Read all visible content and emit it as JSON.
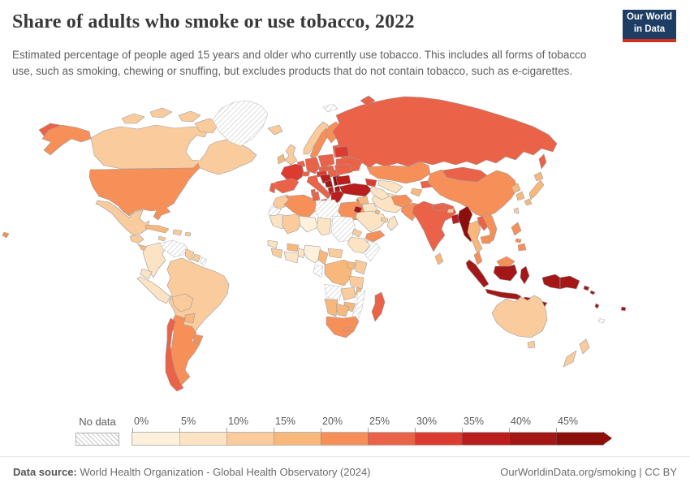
{
  "header": {
    "title": "Share of adults who smoke or use tobacco, 2022",
    "subtitle": "Estimated percentage of people aged 15 years and older who currently use tobacco. This includes all forms of tobacco use, such as smoking, chewing or snuffing, but excludes products that do not contain tobacco, such as e-cigarettes.",
    "logo": {
      "line1": "Our World",
      "line2": "in Data",
      "bg": "#1D3D63",
      "stripe": "#D2301C"
    }
  },
  "legend": {
    "no_data_label": "No data",
    "ticks": [
      "0%",
      "5%",
      "10%",
      "15%",
      "20%",
      "25%",
      "30%",
      "35%",
      "40%",
      "45%"
    ],
    "bins": [
      {
        "range": "0-5",
        "color": "#FDF1DC"
      },
      {
        "range": "5-10",
        "color": "#FBE3C3"
      },
      {
        "range": "10-15",
        "color": "#FACB9C"
      },
      {
        "range": "15-20",
        "color": "#F8B87C"
      },
      {
        "range": "20-25",
        "color": "#F78F58"
      },
      {
        "range": "25-30",
        "color": "#EA6248"
      },
      {
        "range": "30-35",
        "color": "#DC3C2F"
      },
      {
        "range": "35-40",
        "color": "#B91D1D"
      },
      {
        "range": "40-45",
        "color": "#A31717"
      },
      {
        "range": "45+",
        "color": "#8C0F0B"
      }
    ]
  },
  "map": {
    "border_color": "#9B9B9B",
    "ocean": "#FFFFFF",
    "hatch_color": "#C6C6C6"
  },
  "footer": {
    "source_label": "Data source:",
    "source_text": " World Health Organization - Global Health Observatory (2024)",
    "link_text": "OurWorldinData.org/smoking | CC BY"
  },
  "chart_data": {
    "type": "choropleth_map",
    "title": "Share of adults who smoke or use tobacco, 2022",
    "year": 2022,
    "unit": "% of people aged 15+ who currently use tobacco",
    "legend_bins": [
      "0-5",
      "5-10",
      "10-15",
      "15-20",
      "20-25",
      "25-30",
      "30-35",
      "35-40",
      "40-45",
      "45+",
      "no-data"
    ],
    "countries": [
      {
        "id": "russia",
        "name": "Russia",
        "bin": "25-30"
      },
      {
        "id": "canada",
        "name": "Canada",
        "bin": "10-15"
      },
      {
        "id": "greenland",
        "name": "Greenland",
        "bin": "no-data"
      },
      {
        "id": "svalbard",
        "name": "Svalbard",
        "bin": "no-data"
      },
      {
        "id": "usa",
        "name": "United States",
        "bin": "20-25"
      },
      {
        "id": "mexico",
        "name": "Mexico",
        "bin": "10-15"
      },
      {
        "id": "guatemala-honduras",
        "name": "Guatemala/Honduras",
        "bin": "10-15"
      },
      {
        "id": "panama-costa-rica",
        "name": "Costa Rica/Panama",
        "bin": "15-20"
      },
      {
        "id": "cuba",
        "name": "Cuba",
        "bin": "15-20"
      },
      {
        "id": "haiti-dominican-republic",
        "name": "Haiti/Dominican Republic",
        "bin": "10-15"
      },
      {
        "id": "jamaica",
        "name": "Jamaica",
        "bin": "10-15"
      },
      {
        "id": "puerto-rico",
        "name": "Puerto Rico",
        "bin": "10-15"
      },
      {
        "id": "colombia",
        "name": "Colombia",
        "bin": "5-10"
      },
      {
        "id": "venezuela",
        "name": "Venezuela",
        "bin": "no-data"
      },
      {
        "id": "guyana",
        "name": "Guyana",
        "bin": "10-15"
      },
      {
        "id": "suriname",
        "name": "Suriname",
        "bin": "10-15"
      },
      {
        "id": "french-guiana",
        "name": "French Guiana",
        "bin": "no-data"
      },
      {
        "id": "brazil",
        "name": "Brazil",
        "bin": "10-15"
      },
      {
        "id": "ecuador",
        "name": "Ecuador",
        "bin": "5-10"
      },
      {
        "id": "peru",
        "name": "Peru",
        "bin": "5-10"
      },
      {
        "id": "bolivia",
        "name": "Bolivia",
        "bin": "10-15"
      },
      {
        "id": "paraguay",
        "name": "Paraguay",
        "bin": "15-20"
      },
      {
        "id": "uruguay",
        "name": "Uruguay",
        "bin": "20-25"
      },
      {
        "id": "argentina",
        "name": "Argentina",
        "bin": "20-25"
      },
      {
        "id": "chile",
        "name": "Chile",
        "bin": "25-30"
      },
      {
        "id": "iceland",
        "name": "Iceland",
        "bin": "10-15"
      },
      {
        "id": "norway",
        "name": "Norway",
        "bin": "10-15"
      },
      {
        "id": "sweden",
        "name": "Sweden",
        "bin": "20-25"
      },
      {
        "id": "finland",
        "name": "Finland",
        "bin": "20-25"
      },
      {
        "id": "denmark",
        "name": "Denmark",
        "bin": "15-20"
      },
      {
        "id": "estonia-latvia-lithuania",
        "name": "Baltic states",
        "bin": "25-30"
      },
      {
        "id": "united-kingdom",
        "name": "United Kingdom",
        "bin": "10-15"
      },
      {
        "id": "ireland",
        "name": "Ireland",
        "bin": "15-20"
      },
      {
        "id": "netherlands-belgium",
        "name": "Netherlands/Belgium",
        "bin": "25-30"
      },
      {
        "id": "germany",
        "name": "Germany",
        "bin": "25-30"
      },
      {
        "id": "poland",
        "name": "Poland",
        "bin": "25-30"
      },
      {
        "id": "belarus",
        "name": "Belarus",
        "bin": "30-35"
      },
      {
        "id": "ukraine",
        "name": "Ukraine",
        "bin": "25-30"
      },
      {
        "id": "czech-slovakia",
        "name": "Czechia/Slovakia",
        "bin": "25-30"
      },
      {
        "id": "austria",
        "name": "Austria",
        "bin": "30-35"
      },
      {
        "id": "hungary",
        "name": "Hungary",
        "bin": "25-30"
      },
      {
        "id": "switzerland",
        "name": "Switzerland",
        "bin": "25-30"
      },
      {
        "id": "france",
        "name": "France",
        "bin": "30-35"
      },
      {
        "id": "spain",
        "name": "Spain",
        "bin": "25-30"
      },
      {
        "id": "portugal",
        "name": "Portugal",
        "bin": "25-30"
      },
      {
        "id": "italy",
        "name": "Italy",
        "bin": "25-30"
      },
      {
        "id": "slovenia-croatia",
        "name": "Slovenia/Croatia",
        "bin": "35-40"
      },
      {
        "id": "bosnia-herzegovina",
        "name": "Bosnia and Herzegovina",
        "bin": "40-45"
      },
      {
        "id": "serbia",
        "name": "Serbia",
        "bin": "45+"
      },
      {
        "id": "albania-montenegro",
        "name": "Albania/Montenegro",
        "bin": "35-40"
      },
      {
        "id": "north-macedonia",
        "name": "North Macedonia",
        "bin": "40-45"
      },
      {
        "id": "greece",
        "name": "Greece",
        "bin": "35-40"
      },
      {
        "id": "romania",
        "name": "Romania",
        "bin": "25-30"
      },
      {
        "id": "bulgaria",
        "name": "Bulgaria",
        "bin": "35-40"
      },
      {
        "id": "turkey",
        "name": "Turkey",
        "bin": "35-40"
      },
      {
        "id": "cyprus",
        "name": "Cyprus",
        "bin": "35-40"
      },
      {
        "id": "georgia-armenia-azerbaijan",
        "name": "Caucasus states",
        "bin": "30-35"
      },
      {
        "id": "morocco",
        "name": "Morocco",
        "bin": "10-15"
      },
      {
        "id": "western-sahara",
        "name": "Western Sahara",
        "bin": "no-data"
      },
      {
        "id": "algeria",
        "name": "Algeria",
        "bin": "20-25"
      },
      {
        "id": "tunisia",
        "name": "Tunisia",
        "bin": "25-30"
      },
      {
        "id": "libya",
        "name": "Libya",
        "bin": "no-data"
      },
      {
        "id": "egypt",
        "name": "Egypt",
        "bin": "20-25"
      },
      {
        "id": "mauritania",
        "name": "Mauritania",
        "bin": "5-10"
      },
      {
        "id": "mali",
        "name": "Mali",
        "bin": "10-15"
      },
      {
        "id": "niger",
        "name": "Niger",
        "bin": "0-5"
      },
      {
        "id": "chad",
        "name": "Chad",
        "bin": "5-10"
      },
      {
        "id": "sudan-south-sudan",
        "name": "Sudan/South Sudan",
        "bin": "no-data"
      },
      {
        "id": "eritrea",
        "name": "Eritrea",
        "bin": "10-15"
      },
      {
        "id": "ethiopia",
        "name": "Ethiopia",
        "bin": "5-10"
      },
      {
        "id": "somalia",
        "name": "Somalia",
        "bin": "no-data"
      },
      {
        "id": "senegal",
        "name": "Senegal",
        "bin": "5-10"
      },
      {
        "id": "guinea-sierra-leone",
        "name": "Guinea/Sierra Leone",
        "bin": "10-15"
      },
      {
        "id": "cote-divoire-ghana",
        "name": "Côte d'Ivoire/Ghana",
        "bin": "5-10"
      },
      {
        "id": "burkina-faso",
        "name": "Burkina Faso",
        "bin": "15-20"
      },
      {
        "id": "togo-benin",
        "name": "Togo/Benin",
        "bin": "5-10"
      },
      {
        "id": "nigeria",
        "name": "Nigeria",
        "bin": "0-5"
      },
      {
        "id": "cameroon",
        "name": "Cameroon",
        "bin": "15-20"
      },
      {
        "id": "central-african-republic",
        "name": "Central African Republic",
        "bin": "10-15"
      },
      {
        "id": "dr-congo",
        "name": "Democratic Republic of Congo",
        "bin": "15-20"
      },
      {
        "id": "congo-gabon",
        "name": "Congo/Gabon",
        "bin": "no-data"
      },
      {
        "id": "uganda",
        "name": "Uganda",
        "bin": "15-20"
      },
      {
        "id": "kenya",
        "name": "Kenya",
        "bin": "10-15"
      },
      {
        "id": "tanzania",
        "name": "Tanzania",
        "bin": "10-15"
      },
      {
        "id": "angola",
        "name": "Angola",
        "bin": "no-data"
      },
      {
        "id": "zambia",
        "name": "Zambia",
        "bin": "10-15"
      },
      {
        "id": "malawi",
        "name": "Malawi",
        "bin": "15-20"
      },
      {
        "id": "mozambique",
        "name": "Mozambique",
        "bin": "no-data"
      },
      {
        "id": "zimbabwe",
        "name": "Zimbabwe",
        "bin": "15-20"
      },
      {
        "id": "namibia",
        "name": "Namibia",
        "bin": "15-20"
      },
      {
        "id": "botswana",
        "name": "Botswana",
        "bin": "15-20"
      },
      {
        "id": "south-africa",
        "name": "South Africa",
        "bin": "20-25"
      },
      {
        "id": "lesotho",
        "name": "Lesotho",
        "bin": "20-25"
      },
      {
        "id": "madagascar",
        "name": "Madagascar",
        "bin": "25-30"
      },
      {
        "id": "syria",
        "name": "Syria",
        "bin": "15-20"
      },
      {
        "id": "jordan",
        "name": "Jordan",
        "bin": "40-45"
      },
      {
        "id": "iraq",
        "name": "Iraq",
        "bin": "5-10"
      },
      {
        "id": "iran",
        "name": "Iran",
        "bin": "5-10"
      },
      {
        "id": "saudi-arabia",
        "name": "Saudi Arabia",
        "bin": "5-10"
      },
      {
        "id": "kuwait",
        "name": "Kuwait",
        "bin": "15-20"
      },
      {
        "id": "qatar-uae",
        "name": "Qatar/UAE",
        "bin": "10-15"
      },
      {
        "id": "oman",
        "name": "Oman",
        "bin": "5-10"
      },
      {
        "id": "yemen",
        "name": "Yemen",
        "bin": "20-25"
      },
      {
        "id": "kazakhstan",
        "name": "Kazakhstan",
        "bin": "20-25"
      },
      {
        "id": "uzbekistan",
        "name": "Uzbekistan",
        "bin": "5-10"
      },
      {
        "id": "turkmenistan",
        "name": "Turkmenistan",
        "bin": "5-10"
      },
      {
        "id": "kyrgyzstan",
        "name": "Kyrgyzstan",
        "bin": "25-30"
      },
      {
        "id": "tajikistan",
        "name": "Tajikistan",
        "bin": "15-20"
      },
      {
        "id": "afghanistan",
        "name": "Afghanistan",
        "bin": "20-25"
      },
      {
        "id": "pakistan",
        "name": "Pakistan",
        "bin": "20-25"
      },
      {
        "id": "china",
        "name": "China",
        "bin": "20-25"
      },
      {
        "id": "mongolia",
        "name": "Mongolia",
        "bin": "25-30"
      },
      {
        "id": "north-korea",
        "name": "North Korea",
        "bin": "15-20"
      },
      {
        "id": "south-korea",
        "name": "South Korea",
        "bin": "15-20"
      },
      {
        "id": "japan",
        "name": "Japan",
        "bin": "15-20"
      },
      {
        "id": "taiwan",
        "name": "Taiwan",
        "bin": "10-15"
      },
      {
        "id": "india",
        "name": "India",
        "bin": "25-30"
      },
      {
        "id": "nepal",
        "name": "Nepal",
        "bin": "25-30"
      },
      {
        "id": "bhutan",
        "name": "Bhutan",
        "bin": "10-15"
      },
      {
        "id": "bangladesh",
        "name": "Bangladesh",
        "bin": "35-40"
      },
      {
        "id": "sri-lanka",
        "name": "Sri Lanka",
        "bin": "15-20"
      },
      {
        "id": "myanmar",
        "name": "Myanmar",
        "bin": "45+"
      },
      {
        "id": "thailand",
        "name": "Thailand",
        "bin": "15-20"
      },
      {
        "id": "laos",
        "name": "Laos",
        "bin": "25-30"
      },
      {
        "id": "vietnam",
        "name": "Vietnam",
        "bin": "20-25"
      },
      {
        "id": "cambodia",
        "name": "Cambodia",
        "bin": "20-25"
      },
      {
        "id": "malaysia",
        "name": "Malaysia",
        "bin": "20-25"
      },
      {
        "id": "philippines",
        "name": "Philippines",
        "bin": "20-25"
      },
      {
        "id": "indonesia",
        "name": "Indonesia",
        "bin": "40-45"
      },
      {
        "id": "timor-leste",
        "name": "Timor-Leste",
        "bin": "40-45"
      },
      {
        "id": "papua-new-guinea",
        "name": "Papua New Guinea",
        "bin": "40-45"
      },
      {
        "id": "solomon-islands",
        "name": "Solomon Islands",
        "bin": "40-45"
      },
      {
        "id": "vanuatu",
        "name": "Vanuatu",
        "bin": "40-45"
      },
      {
        "id": "fiji",
        "name": "Fiji",
        "bin": "40-45"
      },
      {
        "id": "new-caledonia",
        "name": "New Caledonia",
        "bin": "no-data"
      },
      {
        "id": "australia",
        "name": "Australia",
        "bin": "10-15"
      },
      {
        "id": "new-zealand",
        "name": "New Zealand",
        "bin": "10-15"
      }
    ]
  }
}
